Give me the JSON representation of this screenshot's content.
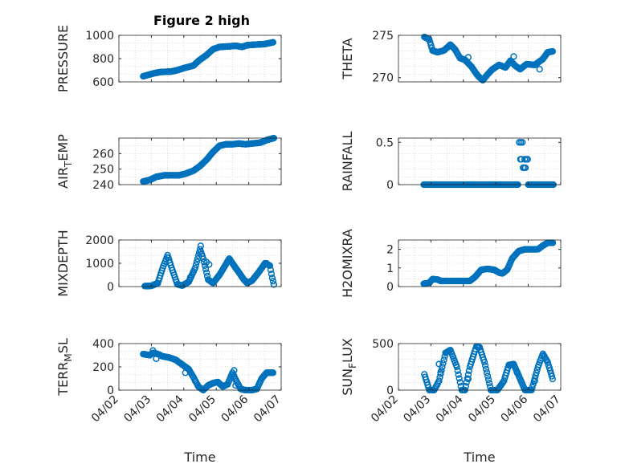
{
  "figure": {
    "title": "Figure 2 high"
  },
  "colors": {
    "marker": "#0072BD",
    "axis": "#262626",
    "grid": "#d6d6d6"
  },
  "chart_data": [
    {
      "type": "scatter",
      "ylabel": "PRESSURE",
      "title": "Figure 2 high",
      "ylim": [
        600,
        1000
      ],
      "yticks": [
        "600",
        "800",
        "1000"
      ],
      "yticks_values": [
        600,
        800,
        1000
      ],
      "xlim": [
        0,
        5
      ],
      "xticks": [],
      "grid": true,
      "keyframes": [
        [
          0.75,
          648
        ],
        [
          0.9,
          660
        ],
        [
          1.1,
          675
        ],
        [
          1.3,
          685
        ],
        [
          1.6,
          688
        ],
        [
          1.8,
          700
        ],
        [
          2.0,
          718
        ],
        [
          2.3,
          740
        ],
        [
          2.45,
          780
        ],
        [
          2.7,
          830
        ],
        [
          2.9,
          880
        ],
        [
          3.1,
          900
        ],
        [
          3.4,
          905
        ],
        [
          3.6,
          910
        ],
        [
          3.8,
          900
        ],
        [
          3.95,
          915
        ],
        [
          4.2,
          920
        ],
        [
          4.5,
          925
        ],
        [
          4.75,
          940
        ]
      ]
    },
    {
      "type": "scatter",
      "ylabel": "THETA",
      "ylim": [
        269.5,
        275
      ],
      "yticks": [
        "270",
        "275"
      ],
      "yticks_values": [
        270,
        275
      ],
      "xlim": [
        0,
        5
      ],
      "xticks": [],
      "grid": true,
      "keyframes": [
        [
          0.8,
          274.8
        ],
        [
          0.95,
          274.5
        ],
        [
          1.05,
          273.2
        ],
        [
          1.2,
          273.0
        ],
        [
          1.4,
          273.2
        ],
        [
          1.6,
          273.9
        ],
        [
          1.75,
          273.3
        ],
        [
          1.9,
          272.3
        ],
        [
          2.05,
          272.1
        ],
        [
          2.25,
          271.3
        ],
        [
          2.45,
          270.2
        ],
        [
          2.6,
          269.7
        ],
        [
          2.75,
          270.4
        ],
        [
          2.9,
          271.0
        ],
        [
          3.1,
          271.5
        ],
        [
          3.3,
          271.2
        ],
        [
          3.45,
          272.0
        ],
        [
          3.6,
          271.4
        ],
        [
          3.75,
          271.0
        ],
        [
          3.95,
          271.6
        ],
        [
          4.2,
          271.5
        ],
        [
          4.45,
          272.2
        ],
        [
          4.6,
          273.0
        ],
        [
          4.75,
          273.1
        ]
      ],
      "outliers": [
        [
          3.55,
          272.5
        ],
        [
          4.35,
          271.0
        ],
        [
          2.15,
          272.4
        ]
      ]
    },
    {
      "type": "scatter",
      "ylabel": "AIR_T_EMP",
      "ylabel_main": "AIR",
      "ylabel_sub": "T",
      "ylabel_rest": "EMP",
      "ylim": [
        240,
        270
      ],
      "yticks": [
        "240",
        "250",
        "260"
      ],
      "yticks_values": [
        240,
        250,
        260
      ],
      "xlim": [
        0,
        5
      ],
      "xticks": [],
      "grid": true,
      "keyframes": [
        [
          0.75,
          242
        ],
        [
          0.95,
          243
        ],
        [
          1.15,
          245
        ],
        [
          1.4,
          246
        ],
        [
          1.7,
          246
        ],
        [
          1.85,
          246
        ],
        [
          2.05,
          247
        ],
        [
          2.3,
          249
        ],
        [
          2.5,
          252
        ],
        [
          2.7,
          256
        ],
        [
          2.9,
          261
        ],
        [
          3.1,
          265
        ],
        [
          3.3,
          266
        ],
        [
          3.5,
          266
        ],
        [
          3.7,
          266.5
        ],
        [
          3.9,
          266
        ],
        [
          4.1,
          266.5
        ],
        [
          4.35,
          267
        ],
        [
          4.6,
          269
        ],
        [
          4.78,
          270
        ]
      ]
    },
    {
      "type": "scatter",
      "ylabel": "RAINFALL",
      "ylim": [
        0,
        0.55
      ],
      "yticks": [
        "0",
        "0.5"
      ],
      "yticks_values": [
        0,
        0.5
      ],
      "xlim": [
        0,
        5
      ],
      "xticks": [],
      "grid": true,
      "keyframes": [
        [
          0.78,
          0
        ],
        [
          3.7,
          0
        ]
      ],
      "segments_extra": [
        [
          4.0,
          0
        ],
        [
          4.78,
          0
        ]
      ],
      "outliers": [
        [
          3.72,
          0.5
        ],
        [
          3.77,
          0.5
        ],
        [
          3.82,
          0.5
        ],
        [
          3.76,
          0.3
        ],
        [
          3.79,
          0.3
        ],
        [
          3.84,
          0.2
        ],
        [
          3.88,
          0.2
        ],
        [
          3.91,
          0.2
        ],
        [
          3.89,
          0.3
        ],
        [
          3.94,
          0.3
        ],
        [
          3.98,
          0.3
        ]
      ]
    },
    {
      "type": "scatter",
      "ylabel": "MIXDEPTH",
      "ylim": [
        0,
        2000
      ],
      "yticks": [
        "0",
        "1000",
        "2000"
      ],
      "yticks_values": [
        0,
        1000,
        2000
      ],
      "xlim": [
        0,
        5
      ],
      "xticks": [],
      "grid": true,
      "keyframes": [
        [
          0.8,
          20
        ],
        [
          1.0,
          30
        ],
        [
          1.2,
          150
        ],
        [
          1.35,
          800
        ],
        [
          1.5,
          1350
        ],
        [
          1.65,
          700
        ],
        [
          1.8,
          100
        ],
        [
          1.95,
          40
        ],
        [
          2.15,
          200
        ],
        [
          2.35,
          800
        ],
        [
          2.5,
          1600
        ],
        [
          2.6,
          1200
        ],
        [
          2.75,
          300
        ],
        [
          2.9,
          150
        ],
        [
          3.1,
          500
        ],
        [
          3.4,
          1200
        ],
        [
          3.6,
          800
        ],
        [
          3.85,
          300
        ],
        [
          3.95,
          150
        ],
        [
          4.1,
          250
        ],
        [
          4.3,
          600
        ],
        [
          4.5,
          1000
        ],
        [
          4.65,
          900
        ],
        [
          4.72,
          400
        ],
        [
          4.78,
          60
        ]
      ],
      "outliers": [
        [
          2.2,
          400
        ],
        [
          2.52,
          1750
        ],
        [
          2.7,
          1050
        ],
        [
          2.78,
          950
        ],
        [
          4.55,
          1000
        ],
        [
          3.9,
          250
        ]
      ]
    },
    {
      "type": "scatter",
      "ylabel": "H2OMIXRA",
      "ylim": [
        0,
        2.5
      ],
      "yticks": [
        "0",
        "1",
        "2"
      ],
      "yticks_values": [
        0,
        1,
        2
      ],
      "xlim": [
        0,
        5
      ],
      "xticks": [],
      "grid": true,
      "keyframes": [
        [
          0.78,
          0.15
        ],
        [
          0.95,
          0.2
        ],
        [
          1.05,
          0.4
        ],
        [
          1.2,
          0.38
        ],
        [
          1.3,
          0.3
        ],
        [
          1.5,
          0.3
        ],
        [
          1.8,
          0.3
        ],
        [
          2.0,
          0.3
        ],
        [
          2.2,
          0.3
        ],
        [
          2.35,
          0.5
        ],
        [
          2.55,
          0.9
        ],
        [
          2.75,
          0.95
        ],
        [
          2.95,
          0.9
        ],
        [
          3.1,
          0.75
        ],
        [
          3.2,
          0.7
        ],
        [
          3.35,
          0.9
        ],
        [
          3.5,
          1.5
        ],
        [
          3.7,
          1.9
        ],
        [
          3.9,
          2.0
        ],
        [
          4.1,
          2.0
        ],
        [
          4.3,
          2.0
        ],
        [
          4.45,
          2.2
        ],
        [
          4.6,
          2.35
        ],
        [
          4.78,
          2.35
        ]
      ]
    },
    {
      "type": "scatter",
      "ylabel": "TERR_M_SL",
      "ylabel_main": "TERR",
      "ylabel_sub": "M",
      "ylabel_rest": "SL",
      "ylim": [
        0,
        400
      ],
      "yticks": [
        "0",
        "200",
        "400"
      ],
      "yticks_values": [
        0,
        200,
        400
      ],
      "xlim": [
        0,
        5
      ],
      "xticks": [
        "04/02",
        "04/03",
        "04/04",
        "04/05",
        "04/06",
        "04/07"
      ],
      "xticks_values": [
        0,
        1,
        2,
        3,
        4,
        5
      ],
      "xlabel": "Time",
      "grid": true,
      "keyframes": [
        [
          0.75,
          310
        ],
        [
          0.95,
          300
        ],
        [
          1.05,
          320
        ],
        [
          1.2,
          310
        ],
        [
          1.35,
          290
        ],
        [
          1.55,
          280
        ],
        [
          1.75,
          260
        ],
        [
          1.95,
          220
        ],
        [
          2.15,
          180
        ],
        [
          2.3,
          110
        ],
        [
          2.45,
          30
        ],
        [
          2.6,
          0
        ],
        [
          2.75,
          40
        ],
        [
          2.9,
          60
        ],
        [
          3.05,
          70
        ],
        [
          3.2,
          30
        ],
        [
          3.35,
          50
        ],
        [
          3.5,
          150
        ],
        [
          3.6,
          90
        ],
        [
          3.75,
          10
        ],
        [
          3.9,
          0
        ],
        [
          4.1,
          0
        ],
        [
          4.25,
          10
        ],
        [
          4.4,
          100
        ],
        [
          4.55,
          150
        ],
        [
          4.75,
          150
        ]
      ],
      "outliers": [
        [
          1.05,
          340
        ],
        [
          1.15,
          270
        ],
        [
          2.05,
          150
        ],
        [
          2.35,
          80
        ],
        [
          3.55,
          170
        ],
        [
          3.6,
          40
        ]
      ]
    },
    {
      "type": "scatter",
      "ylabel": "SUN_F_LUX",
      "ylabel_main": "SUN",
      "ylabel_sub": "F",
      "ylabel_rest": "LUX",
      "ylim": [
        0,
        500
      ],
      "yticks": [
        "0",
        "500"
      ],
      "yticks_values": [
        0,
        500
      ],
      "xlim": [
        0,
        5
      ],
      "xticks": [
        "04/02",
        "04/03",
        "04/04",
        "04/05",
        "04/06",
        "04/07"
      ],
      "xticks_values": [
        0,
        1,
        2,
        3,
        4,
        5
      ],
      "xlabel": "Time",
      "grid": true,
      "keyframes": [
        [
          0.8,
          170
        ],
        [
          0.95,
          0
        ],
        [
          1.1,
          0
        ],
        [
          1.25,
          100
        ],
        [
          1.45,
          400
        ],
        [
          1.6,
          430
        ],
        [
          1.8,
          250
        ],
        [
          1.95,
          0
        ],
        [
          2.05,
          0
        ],
        [
          2.2,
          250
        ],
        [
          2.4,
          470
        ],
        [
          2.5,
          460
        ],
        [
          2.65,
          300
        ],
        [
          2.85,
          0
        ],
        [
          3.05,
          0
        ],
        [
          3.25,
          100
        ],
        [
          3.4,
          270
        ],
        [
          3.55,
          280
        ],
        [
          3.75,
          120
        ],
        [
          3.9,
          0
        ],
        [
          4.1,
          0
        ],
        [
          4.3,
          250
        ],
        [
          4.45,
          390
        ],
        [
          4.6,
          300
        ],
        [
          4.75,
          120
        ]
      ],
      "outliers": [
        [
          1.25,
          280
        ],
        [
          1.3,
          190
        ],
        [
          2.15,
          120
        ],
        [
          4.2,
          100
        ],
        [
          3.65,
          190
        ]
      ]
    }
  ]
}
